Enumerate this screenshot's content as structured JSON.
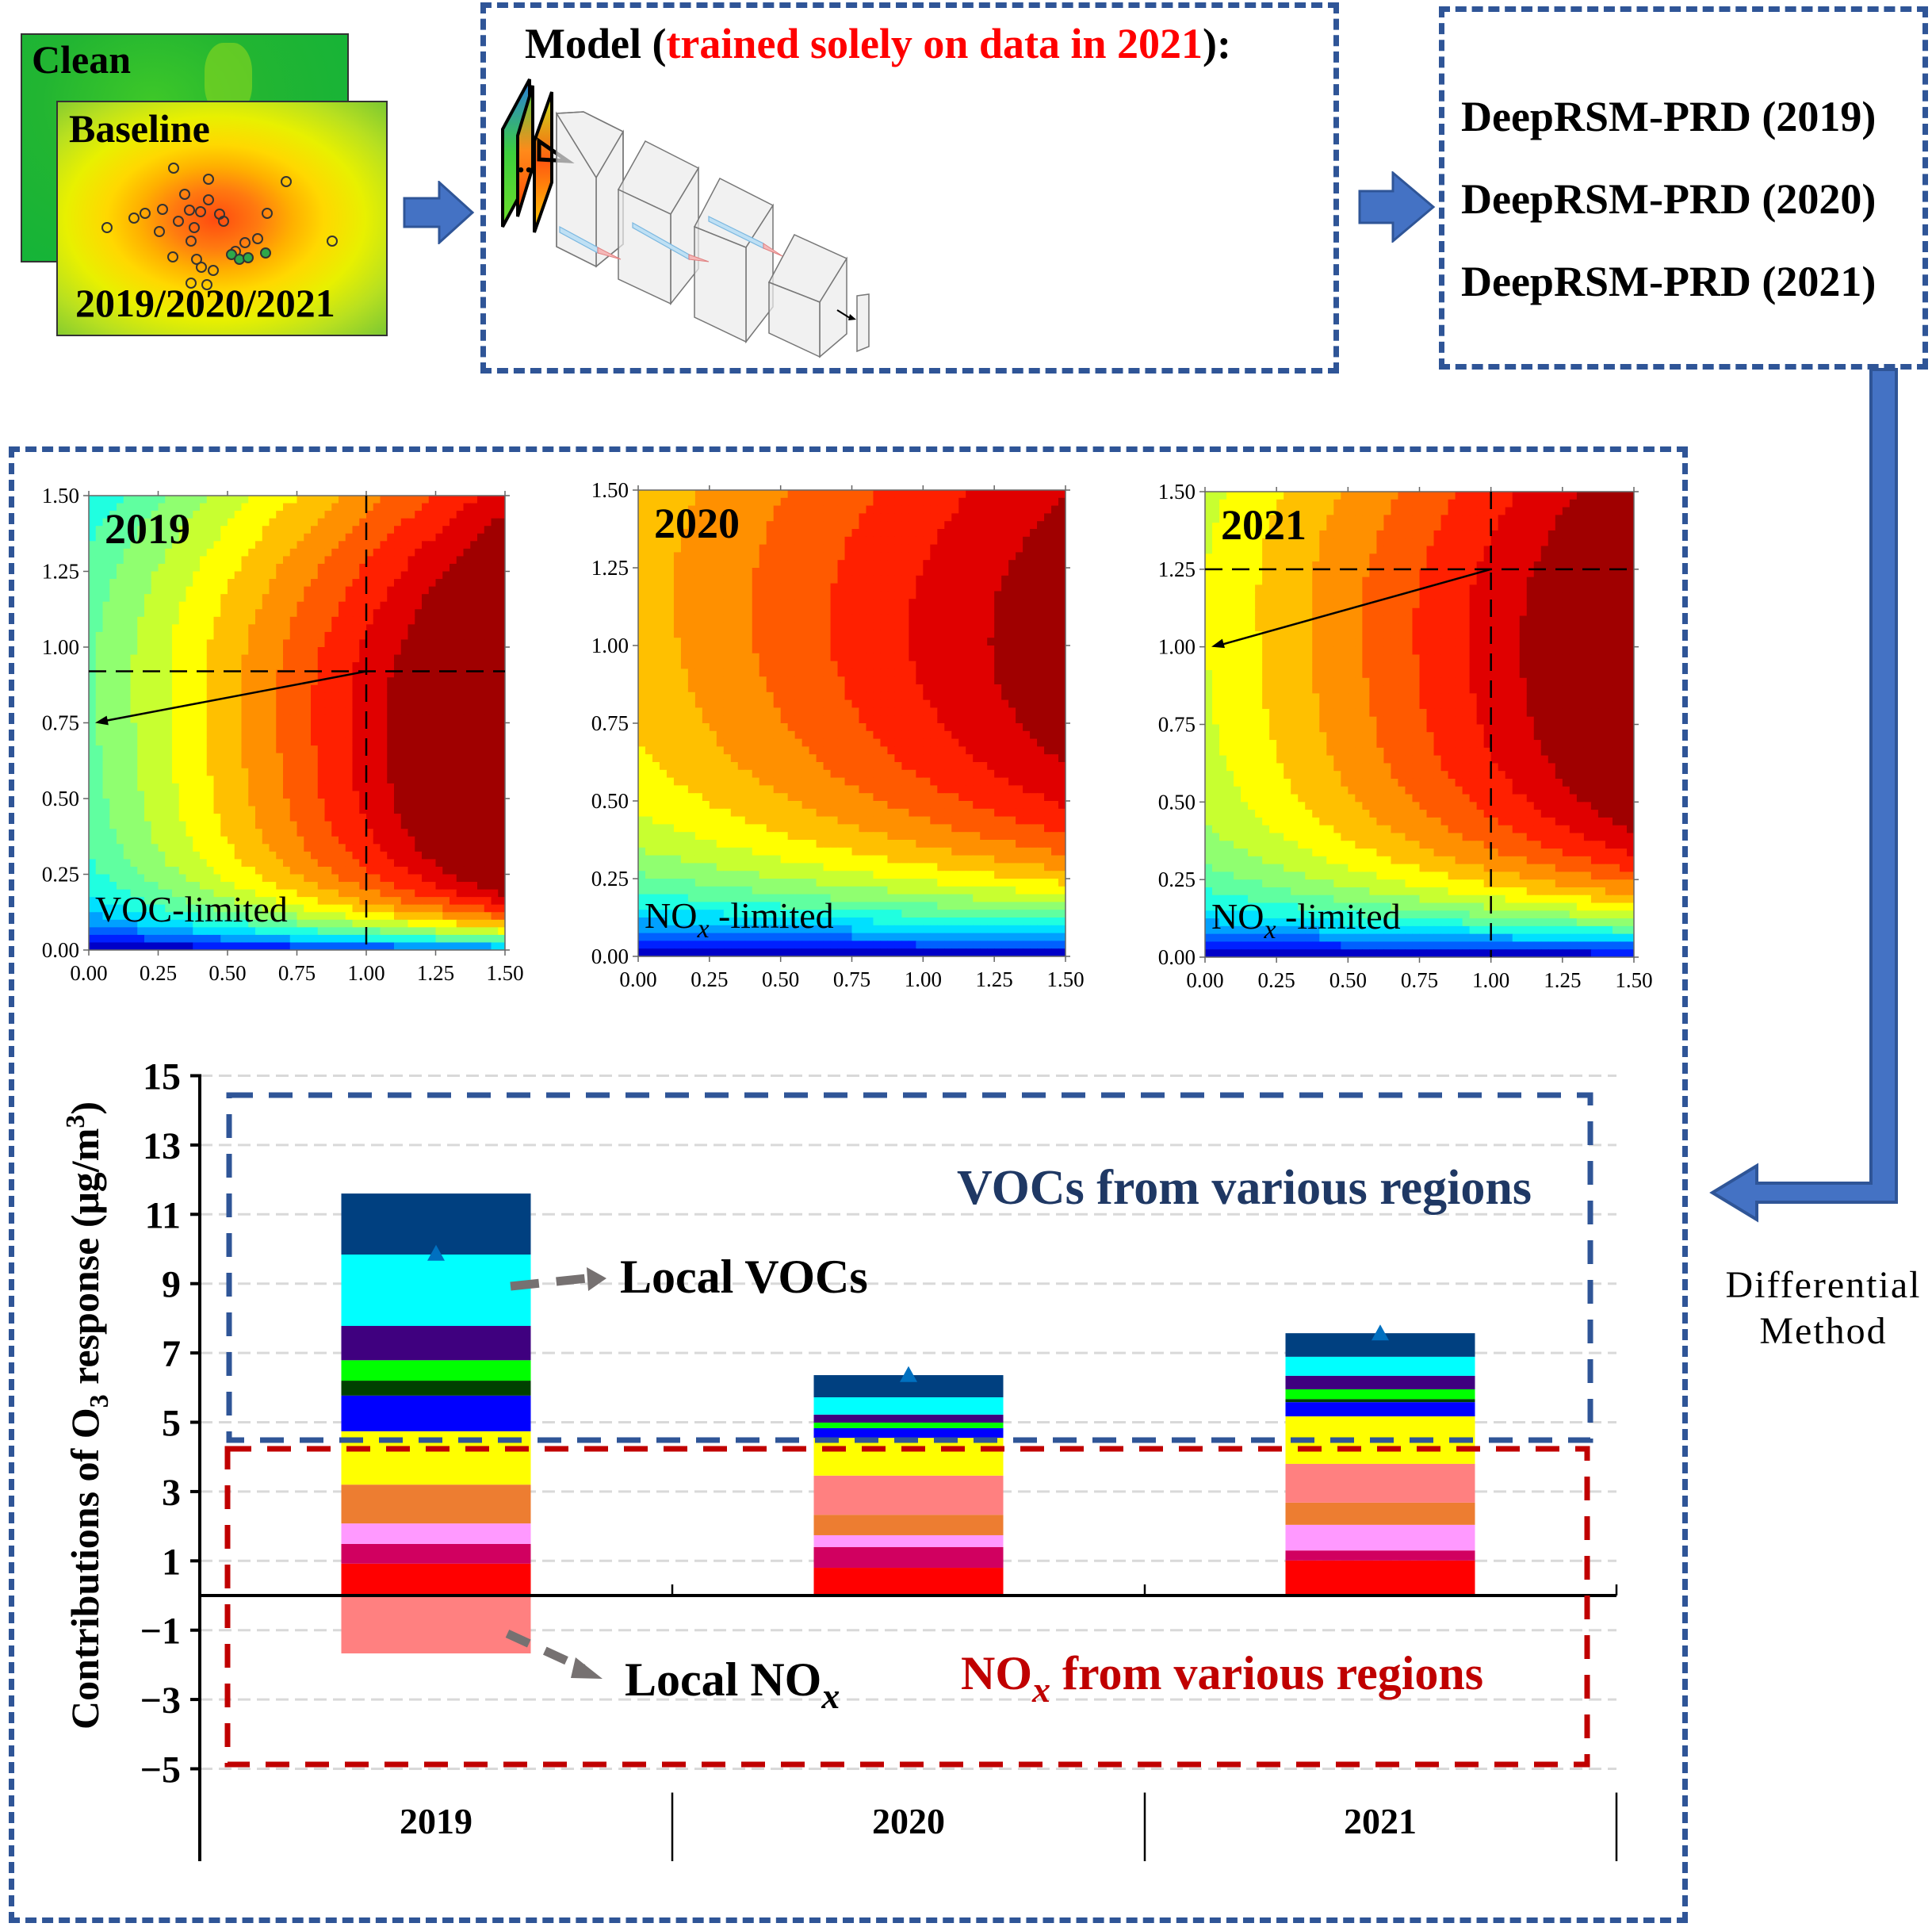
{
  "inputs": {
    "clean_label": "Clean",
    "baseline_label": "Baseline",
    "years_label": "2019/2020/2021"
  },
  "model": {
    "title_prefix": "Model (",
    "title_highlight": "trained solely on data in 2021",
    "title_suffix": "):",
    "highlight_color": "#ff0000"
  },
  "outputs": {
    "models": [
      "DeepRSM-PRD (2019)",
      "DeepRSM-PRD (2020)",
      "DeepRSM-PRD (2021)"
    ]
  },
  "flow": {
    "differential_line1": "Differential",
    "differential_line2": "Method",
    "arrow_color": "#4472c4",
    "box_border_color": "#2f5597"
  },
  "contours": [
    {
      "year": "2019",
      "regime_label": "VOC-limited",
      "regime_subscript": "",
      "regime_suffix": "",
      "xticks": [
        "0.00",
        "0.25",
        "0.50",
        "0.75",
        "1.00",
        "1.25",
        "1.50"
      ],
      "yticks": [
        "0.00",
        "0.25",
        "0.50",
        "0.75",
        "1.00",
        "1.25",
        "1.50"
      ],
      "baseline_point": [
        1.0,
        0.92
      ],
      "arrow_to": [
        0.0,
        0.75
      ]
    },
    {
      "year": "2020",
      "regime_label": "NO",
      "regime_subscript": "x",
      "regime_suffix": " -limited",
      "xticks": [
        "0.00",
        "0.25",
        "0.50",
        "0.75",
        "1.00",
        "1.25",
        "1.50"
      ],
      "yticks": [
        "0.00",
        "0.25",
        "0.50",
        "0.75",
        "1.00",
        "1.25",
        "1.50"
      ],
      "baseline_point": null,
      "arrow_to": null
    },
    {
      "year": "2021",
      "regime_label": "NO",
      "regime_subscript": "x",
      "regime_suffix": " -limited",
      "xticks": [
        "0.00",
        "0.25",
        "0.50",
        "0.75",
        "1.00",
        "1.25",
        "1.50"
      ],
      "yticks": [
        "0.00",
        "0.25",
        "0.50",
        "0.75",
        "1.00",
        "1.25",
        "1.50"
      ],
      "baseline_point": [
        1.0,
        1.25
      ],
      "arrow_to": [
        0.0,
        1.0
      ]
    }
  ],
  "chart_data": {
    "type": "bar",
    "stacked": true,
    "categories": [
      "2019",
      "2020",
      "2021"
    ],
    "ylabel": "Contributions of O3 response (μg/m3)",
    "ylim": [
      -5,
      15
    ],
    "yticks": [
      "15",
      "13",
      "11",
      "9",
      "7",
      "5",
      "3",
      "1",
      "−1",
      "−3",
      "−5"
    ],
    "ytick_values": [
      15,
      13,
      11,
      9,
      7,
      5,
      3,
      1,
      -1,
      -3,
      -5
    ],
    "grid": true,
    "segments": [
      {
        "group": "NOx",
        "color": "#ff0000",
        "values": [
          0.92,
          0.8,
          1.01
        ]
      },
      {
        "group": "NOx",
        "color": "#d10060",
        "values": [
          0.57,
          0.6,
          0.29
        ]
      },
      {
        "group": "NOx",
        "color": "#ff99ff",
        "values": [
          0.59,
          0.34,
          0.74
        ]
      },
      {
        "group": "NOx",
        "color": "#ed7d31",
        "values": [
          1.12,
          0.59,
          0.64
        ]
      },
      {
        "group": "NOx",
        "color": "#ff8080",
        "values": [
          -1.67,
          1.13,
          1.12
        ]
      },
      {
        "group": "NOx",
        "color": "#ffff00",
        "values": [
          1.54,
          1.09,
          1.37
        ]
      },
      {
        "group": "VOC",
        "color": "#0000ff",
        "values": [
          1.03,
          0.28,
          0.41
        ]
      },
      {
        "group": "VOC",
        "color": "#004000",
        "values": [
          0.43,
          0.0,
          0.09
        ]
      },
      {
        "group": "VOC",
        "color": "#00ff00",
        "values": [
          0.59,
          0.16,
          0.28
        ]
      },
      {
        "group": "VOC",
        "color": "#3f007f",
        "values": [
          0.99,
          0.23,
          0.39
        ]
      },
      {
        "group": "VOC",
        "color": "#00ffff",
        "values": [
          2.06,
          0.5,
          0.55
        ]
      },
      {
        "group": "VOC",
        "color": "#004080",
        "values": [
          1.76,
          0.64,
          0.68
        ]
      }
    ],
    "markers": {
      "shape": "triangle",
      "color": "#0070c0",
      "values": [
        9.8,
        6.3,
        7.5
      ]
    },
    "annotations": {
      "voc_region": "VOCs from various regions",
      "voc_region_color": "#1f3864",
      "nox_region_prefix": "NO",
      "nox_region_sub": "x",
      "nox_region_suffix": "  from various regions",
      "nox_region_color": "#c00000",
      "local_vocs": "Local VOCs",
      "local_nox_prefix": "Local NO",
      "local_nox_sub": "x"
    }
  }
}
